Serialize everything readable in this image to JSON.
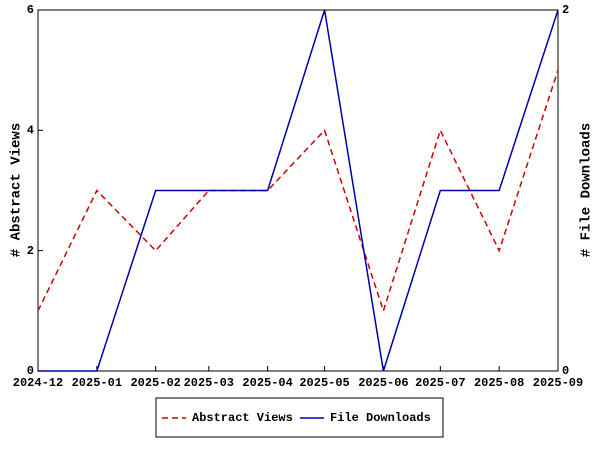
{
  "chart_data": {
    "type": "line",
    "x": [
      "2024-12",
      "2025-01",
      "2025-02",
      "2025-03",
      "2025-04",
      "2025-05",
      "2025-06",
      "2025-07",
      "2025-08",
      "2025-09"
    ],
    "ylabel": "# Abstract Views",
    "y2label": "# File Downloads",
    "ylim": [
      0,
      6
    ],
    "yticks": [
      0,
      2,
      4,
      6
    ],
    "y2lim": [
      0,
      2
    ],
    "y2ticks": [
      0,
      2
    ],
    "series": [
      {
        "name": "Abstract Views",
        "color": "#cc0000",
        "dash": true,
        "values": [
          1,
          3,
          2,
          3,
          3,
          4,
          1,
          4,
          2,
          5
        ]
      },
      {
        "name": "File Downloads",
        "color": "#0000aa",
        "axis": "y2",
        "values": [
          0,
          0,
          1,
          1,
          1,
          2,
          0,
          1,
          1,
          2
        ]
      }
    ]
  }
}
